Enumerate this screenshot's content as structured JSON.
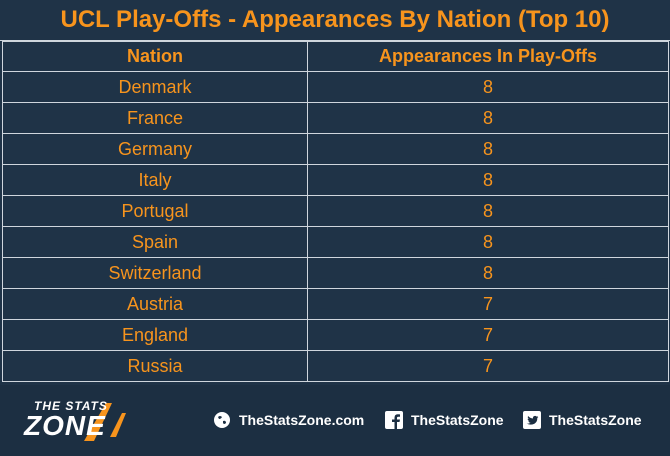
{
  "title": "UCL Play-Offs - Appearances By Nation (Top 10)",
  "table": {
    "headers": [
      "Nation",
      "Appearances In Play-Offs"
    ],
    "rows": [
      {
        "nation": "Denmark",
        "appearances": "8"
      },
      {
        "nation": "France",
        "appearances": "8"
      },
      {
        "nation": "Germany",
        "appearances": "8"
      },
      {
        "nation": "Italy",
        "appearances": "8"
      },
      {
        "nation": "Portugal",
        "appearances": "8"
      },
      {
        "nation": "Spain",
        "appearances": "8"
      },
      {
        "nation": "Switzerland",
        "appearances": "8"
      },
      {
        "nation": "Austria",
        "appearances": "7"
      },
      {
        "nation": "England",
        "appearances": "7"
      },
      {
        "nation": "Russia",
        "appearances": "7"
      }
    ]
  },
  "footer": {
    "logo_top": "THE STATS",
    "logo_main": "ZONE",
    "website": "TheStatsZone.com",
    "facebook": "TheStatsZone",
    "twitter": "TheStatsZone"
  },
  "colors": {
    "background": "#1f3347",
    "accent": "#f7941d",
    "grid": "#cfd6dd",
    "footer": "#1c2f42"
  },
  "icons": [
    "globe-icon",
    "facebook-icon",
    "twitter-icon"
  ]
}
